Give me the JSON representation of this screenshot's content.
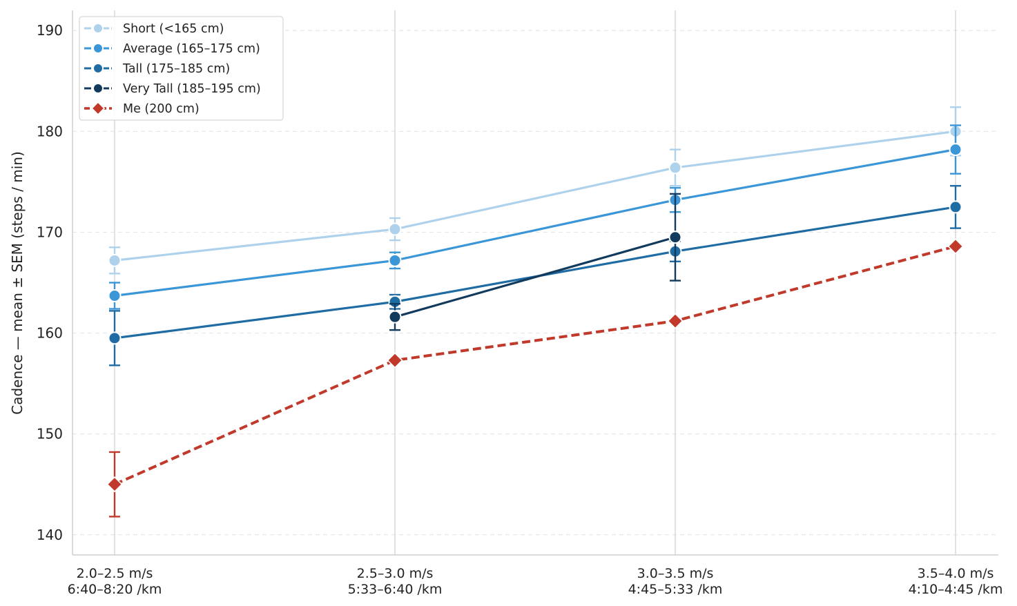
{
  "chart_data": {
    "type": "line",
    "title": "",
    "xlabel": "",
    "ylabel": "Cadence — mean ± SEM (steps / min)",
    "ylim": [
      138,
      192
    ],
    "yticks": [
      140,
      150,
      160,
      170,
      180,
      190
    ],
    "grid": {
      "y": "dashed-light",
      "x": "solid-vertical"
    },
    "legend_position": "top-left",
    "categories": [
      {
        "line1": "2.0–2.5 m/s",
        "line2": "6:40–8:20 /km"
      },
      {
        "line1": "2.5–3.0 m/s",
        "line2": "5:33–6:40 /km"
      },
      {
        "line1": "3.0–3.5 m/s",
        "line2": "4:45–5:33 /km"
      },
      {
        "line1": "3.5–4.0 m/s",
        "line2": "4:10–4:45 /km"
      }
    ],
    "series": [
      {
        "name": "Short (<165 cm)",
        "color": "#aed1ec",
        "marker": "circle",
        "dash": "solid",
        "values": [
          167.2,
          170.3,
          176.4,
          180.0
        ],
        "sem": [
          1.3,
          1.1,
          1.8,
          2.4
        ]
      },
      {
        "name": "Average (165–175 cm)",
        "color": "#3a96d6",
        "marker": "circle",
        "dash": "solid",
        "values": [
          163.7,
          167.2,
          173.2,
          178.2
        ],
        "sem": [
          1.3,
          0.8,
          1.2,
          2.4
        ]
      },
      {
        "name": "Tall (175–185 cm)",
        "color": "#1f6ba3",
        "marker": "circle",
        "dash": "solid",
        "values": [
          159.5,
          163.1,
          168.1,
          172.5
        ],
        "sem": [
          2.7,
          0.7,
          1.0,
          2.1
        ]
      },
      {
        "name": "Very Tall (185–195 cm)",
        "color": "#123a5c",
        "marker": "circle",
        "dash": "solid",
        "values": [
          null,
          161.6,
          169.5,
          null
        ],
        "sem": [
          null,
          1.3,
          4.3,
          null
        ]
      },
      {
        "name": "Me (200 cm)",
        "color": "#c0392b",
        "marker": "diamond",
        "dash": "dashed",
        "values": [
          145.0,
          157.3,
          161.2,
          168.6
        ],
        "sem": [
          3.2,
          null,
          null,
          null
        ]
      }
    ]
  }
}
